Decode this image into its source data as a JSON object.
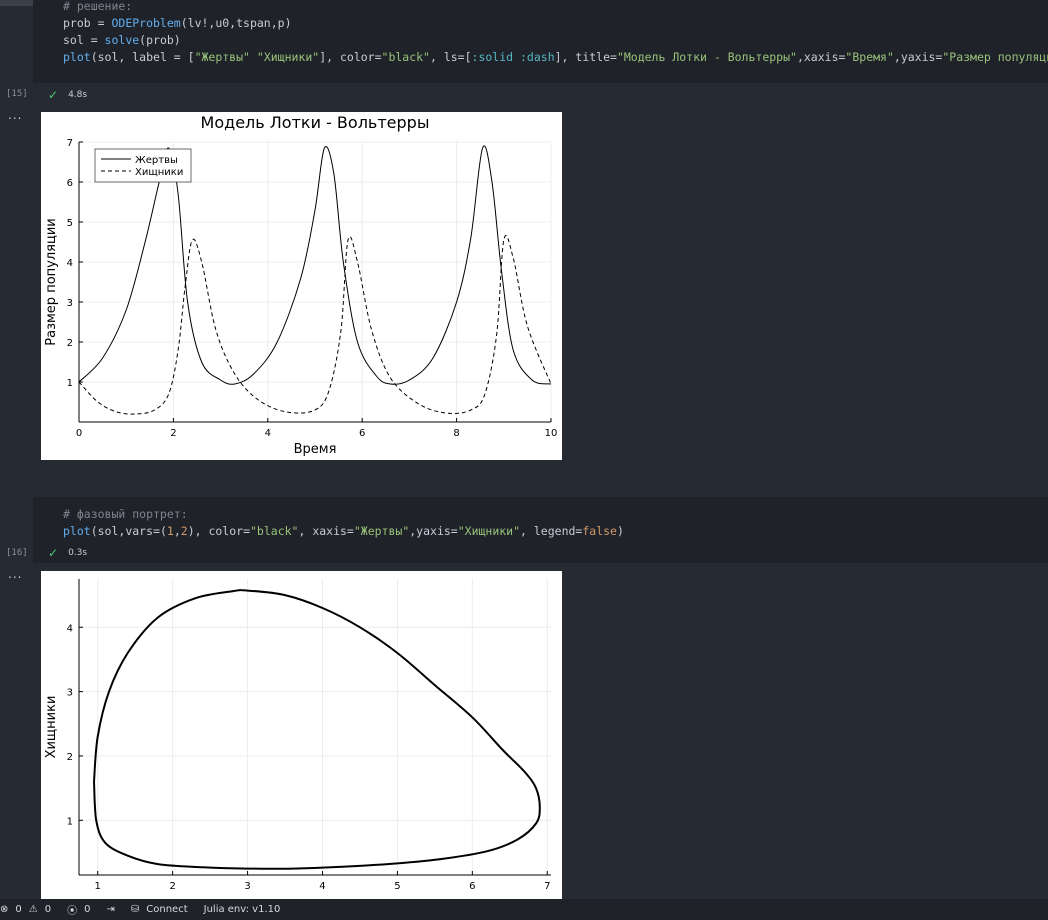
{
  "cell1": {
    "exec_count": "[15]",
    "time": "4.8s",
    "code": {
      "comment": "# решение:",
      "line2_a": "prob = ",
      "line2_fn": "ODEProblem",
      "line2_b": "(lv!,u0,tspan,p)",
      "line3_a": "sol = ",
      "line3_fn": "solve",
      "line3_b": "(prob)",
      "line4_fn": "plot",
      "line4_a": "(sol, label = [",
      "line4_s1": "\"Жертвы\"",
      "line4_sp": " ",
      "line4_s2": "\"Хищники\"",
      "line4_b": "], color=",
      "line4_s3": "\"black\"",
      "line4_c": ", ls=[",
      "line4_sym": ":solid :dash",
      "line4_d": "], title=",
      "line4_s4": "\"Модель Лотки - Вольтерры\"",
      "line4_e": ",xaxis=",
      "line4_s5": "\"Время\"",
      "line4_f": ",yaxis=",
      "line4_s6": "\"Размер популяции\"",
      "line4_g": ")"
    }
  },
  "cell2": {
    "exec_count": "[16]",
    "time": "0.3s",
    "code": {
      "comment": "# фазовый портрет:",
      "fn": "plot",
      "a": "(sol,vars=(",
      "n1": "1",
      "b": ",",
      "n2": "2",
      "c": "), color=",
      "s1": "\"black\"",
      "d": ", xaxis=",
      "s2": "\"Жертвы\"",
      "e": ",yaxis=",
      "s3": "\"Хищники\"",
      "f": ", legend=",
      "bool": "false",
      "g": ")"
    }
  },
  "output_menu": "...",
  "chart_data": [
    {
      "type": "line",
      "title": "Модель Лотки - Вольтерры",
      "xlabel": "Время",
      "ylabel": "Размер популяции",
      "xlim": [
        0,
        10
      ],
      "ylim": [
        0,
        7
      ],
      "xticks": [
        "0",
        "2",
        "4",
        "6",
        "8",
        "10"
      ],
      "yticks": [
        "1",
        "2",
        "3",
        "4",
        "5",
        "6",
        "7"
      ],
      "legend_position": "top-left",
      "grid": true,
      "series": [
        {
          "name": "Жертвы",
          "style": "solid",
          "color": "#000000",
          "x": [
            0,
            0.5,
            1.0,
            1.4,
            1.7,
            1.9,
            2.1,
            2.3,
            2.6,
            3.0,
            3.3,
            3.7,
            4.2,
            4.7,
            5.0,
            5.2,
            5.4,
            5.6,
            5.9,
            6.3,
            6.6,
            7.0,
            7.5,
            8.0,
            8.3,
            8.55,
            8.75,
            8.95,
            9.2,
            9.6,
            10.0
          ],
          "y": [
            1.0,
            1.6,
            2.8,
            4.5,
            6.0,
            6.85,
            5.7,
            3.0,
            1.5,
            1.05,
            0.95,
            1.2,
            2.0,
            3.6,
            5.3,
            6.85,
            6.2,
            4.0,
            2.0,
            1.15,
            0.95,
            1.05,
            1.6,
            3.0,
            4.6,
            6.85,
            6.0,
            3.8,
            1.8,
            1.05,
            0.95
          ]
        },
        {
          "name": "Хищники",
          "style": "dash",
          "color": "#000000",
          "x": [
            0,
            0.4,
            0.8,
            1.2,
            1.6,
            1.9,
            2.1,
            2.25,
            2.4,
            2.6,
            2.9,
            3.3,
            3.8,
            4.4,
            5.0,
            5.3,
            5.55,
            5.7,
            5.9,
            6.2,
            6.6,
            7.2,
            7.8,
            8.3,
            8.6,
            8.85,
            9.0,
            9.2,
            9.5,
            10.0
          ],
          "y": [
            1.0,
            0.5,
            0.25,
            0.2,
            0.3,
            0.7,
            1.8,
            3.4,
            4.55,
            4.0,
            2.3,
            1.2,
            0.55,
            0.25,
            0.3,
            0.8,
            2.3,
            4.55,
            4.0,
            2.3,
            1.1,
            0.45,
            0.22,
            0.3,
            0.7,
            2.2,
            4.55,
            4.1,
            2.4,
            0.95
          ]
        }
      ]
    },
    {
      "type": "line",
      "title": "",
      "xlabel": "",
      "ylabel": "Хищники",
      "xlim": [
        0.75,
        7.05
      ],
      "ylim": [
        0.15,
        4.75
      ],
      "xticks": [
        "1",
        "2",
        "3",
        "4",
        "5",
        "6",
        "7"
      ],
      "yticks": [
        "1",
        "2",
        "3",
        "4"
      ],
      "grid": true,
      "series": [
        {
          "color": "#000000",
          "x": [
            0.95,
            1.0,
            1.15,
            1.4,
            1.8,
            2.3,
            2.8,
            3.0,
            3.5,
            4.0,
            4.5,
            5.0,
            5.5,
            6.0,
            6.4,
            6.7,
            6.85,
            6.9,
            6.85,
            6.6,
            6.2,
            5.6,
            5.0,
            4.3,
            3.6,
            3.0,
            2.4,
            1.8,
            1.4,
            1.1,
            0.98,
            0.95
          ],
          "y": [
            1.6,
            2.3,
            3.0,
            3.6,
            4.15,
            4.45,
            4.56,
            4.57,
            4.5,
            4.3,
            4.0,
            3.6,
            3.1,
            2.6,
            2.1,
            1.75,
            1.5,
            1.2,
            0.95,
            0.7,
            0.52,
            0.4,
            0.33,
            0.28,
            0.25,
            0.25,
            0.27,
            0.32,
            0.45,
            0.65,
            1.0,
            1.6
          ]
        }
      ]
    }
  ],
  "statusbar": {
    "errors": "0",
    "warnings": "0",
    "ports": "0",
    "connect": "Connect",
    "env": "Julia env: v1.10"
  }
}
